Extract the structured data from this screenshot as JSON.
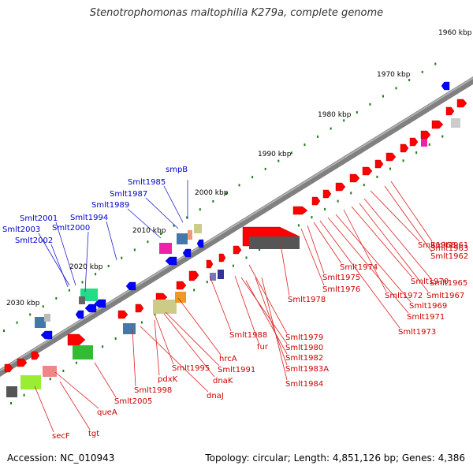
{
  "title": "Stenotrophomonas maltophilia K279a, complete genome",
  "footer": {
    "accession": "Accession: NC_010943",
    "summary": "Topology: circular; Length: 4,851,126 bp; Genes: 4,386"
  },
  "colors": {
    "forward_gene": "#ff0000",
    "reverse_gene": "#0000ff",
    "label_forward": "#cc0000",
    "label_reverse": "#0000cc",
    "backbone": "#808080",
    "tick": "#1a7a1a"
  },
  "kbp_ticks": [
    "1960 kbp",
    "1970 kbp",
    "1980 kbp",
    "1990 kbp",
    "2000 kbp",
    "2010 kbp",
    "2020 kbp",
    "2030 kbp"
  ],
  "labels_top": [
    "smpB",
    "Smlt1985",
    "Smlt1987",
    "Smlt1989",
    "Smlt1994",
    "Smlt2001",
    "Smlt2000",
    "Smlt2003",
    "Smlt2002"
  ],
  "labels_bottom": [
    "Smlt1961",
    "Smlt1962",
    "Smlt1963",
    "Smlt1968",
    "Smlt1965",
    "Smlt1967",
    "Smlt1970",
    "Smlt1972",
    "Smlt1969",
    "Smlt1971",
    "Smlt1973",
    "Smlt1974",
    "Smlt1975",
    "Smlt1976",
    "Smlt1978",
    "Smlt1979",
    "Smlt1988",
    "fur",
    "Smlt1980",
    "Smlt1982",
    "Smlt1983A",
    "Smlt1984",
    "hrcA",
    "Smlt1991",
    "dnaK",
    "Smlt1995",
    "dnaJ",
    "pdxK",
    "Smlt1998",
    "Smlt2005",
    "queA",
    "tgt",
    "secF"
  ]
}
